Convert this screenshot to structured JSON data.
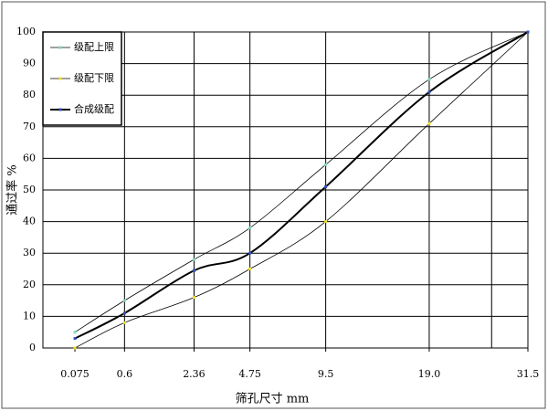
{
  "chart_data": {
    "type": "line",
    "x_label": "筛孔尺寸 mm",
    "y_label": "通过率 %",
    "x_scale_exponent": 0.45,
    "xlim": [
      0,
      31.5
    ],
    "xticks": [
      0.075,
      0.6,
      2.36,
      4.75,
      9.5,
      {
        "value": 19,
        "label": "19.0"
      },
      31.5
    ],
    "x_gridlines": [
      0.6,
      2.36,
      4.75,
      9.5,
      19,
      26.5,
      31.5
    ],
    "ylim": [
      0,
      100
    ],
    "yticks": [
      0,
      10,
      20,
      30,
      40,
      50,
      60,
      70,
      80,
      90,
      100
    ],
    "grid": true,
    "legend": "upper left",
    "x": [
      0.075,
      0.6,
      2.36,
      4.75,
      9.5,
      19,
      31.5
    ],
    "series": [
      {
        "name": "级配上限",
        "color": "#000000",
        "marker_color": "#7fd7c0",
        "line_width": 0.8,
        "values": [
          5,
          15,
          28,
          38,
          58,
          85,
          100
        ]
      },
      {
        "name": "级配下限",
        "color": "#000000",
        "marker_color": "#f0e020",
        "line_width": 0.8,
        "values": [
          0,
          8,
          16,
          25,
          40,
          71,
          100
        ]
      },
      {
        "name": "合成级配",
        "color": "#000000",
        "marker_color": "#3050c0",
        "line_width": 2,
        "values": [
          3,
          11,
          24.5,
          30,
          51,
          81,
          100
        ]
      }
    ]
  }
}
